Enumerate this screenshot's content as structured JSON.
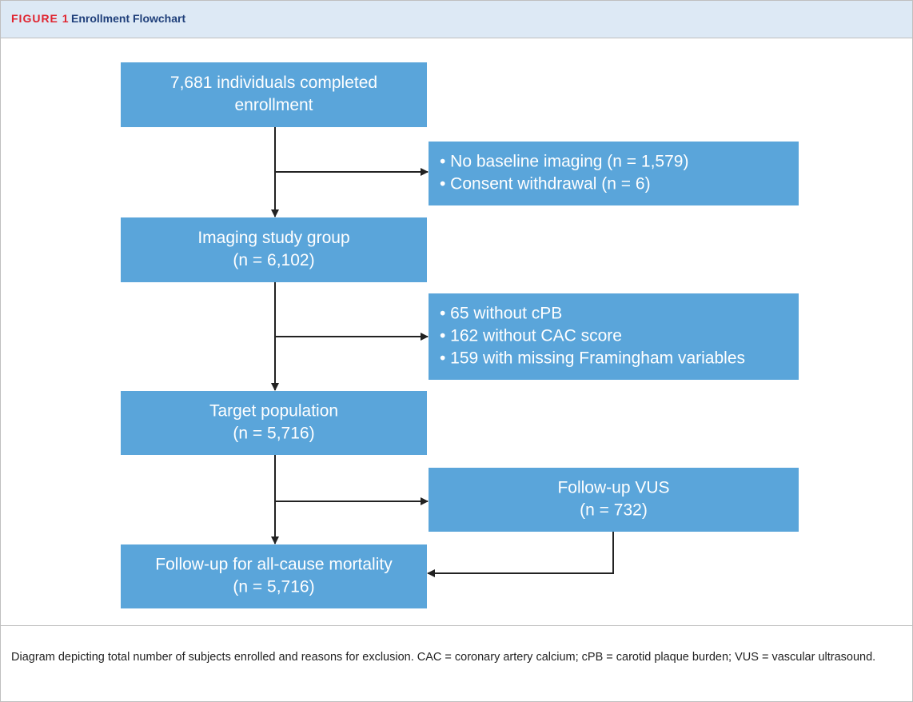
{
  "header": {
    "label": "FIGURE 1",
    "title": "Enrollment Flowchart"
  },
  "nodes": [
    {
      "lines": [
        "7,681 individuals completed",
        "enrollment"
      ]
    },
    {
      "lines": [
        "• No baseline imaging (n = 1,579)",
        "• Consent withdrawal (n = 6)"
      ]
    },
    {
      "lines": [
        "Imaging study group",
        "(n = 6,102)"
      ]
    },
    {
      "lines": [
        "• 65 without cPB",
        "• 162 without CAC score",
        "• 159 with missing Framingham variables"
      ]
    },
    {
      "lines": [
        "Target population",
        "(n = 5,716)"
      ]
    },
    {
      "lines": [
        "Follow-up VUS",
        "(n = 732)"
      ]
    },
    {
      "lines": [
        "Follow-up for all-cause mortality",
        "(n = 5,716)"
      ]
    }
  ],
  "caption": "Diagram depicting total number of subjects enrolled and reasons for exclusion. CAC = coronary artery calcium; cPB = carotid plaque burden; VUS = vascular ultrasound."
}
